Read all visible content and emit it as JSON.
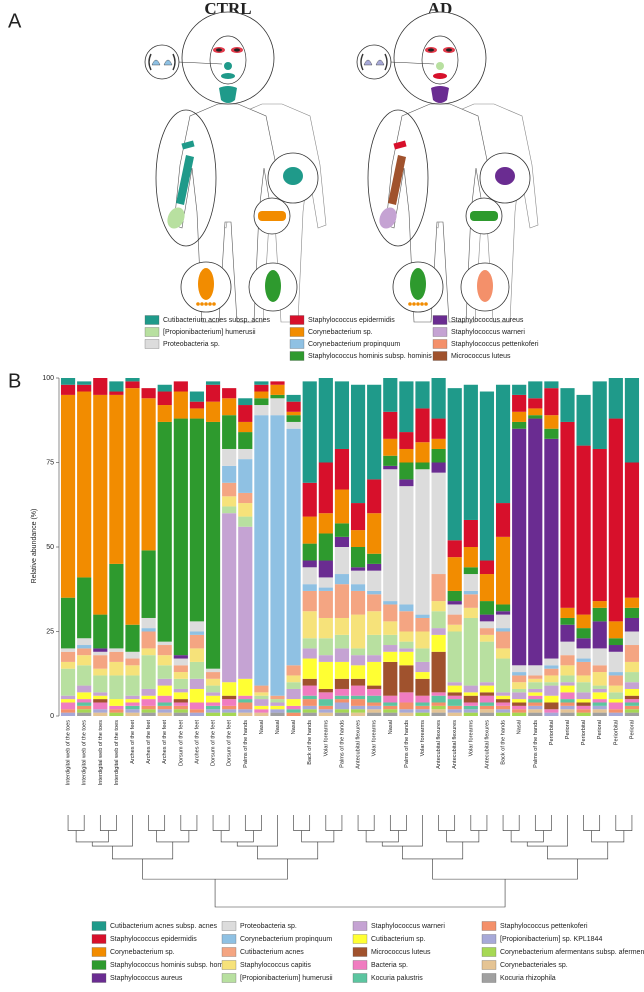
{
  "panel_a": {
    "label": "A",
    "groups": [
      "CTRL",
      "AD"
    ],
    "legend": [
      {
        "name": "Cutibacterium acnes subsp. acnes",
        "color": "#1f9a8a"
      },
      {
        "name": "[Propionibacterium] humerusii",
        "color": "#b8e0a0"
      },
      {
        "name": "Proteobacteria sp.",
        "color": "#dcdcdc"
      },
      {
        "name": "Staphylococcus epidermidis",
        "color": "#d7102b"
      },
      {
        "name": "Corynebacterium sp.",
        "color": "#f28c00"
      },
      {
        "name": "Corynebacterium propinquum",
        "color": "#8fc1e3"
      },
      {
        "name": "Staphylococcus hominis subsp. hominis",
        "color": "#2e9a2e"
      },
      {
        "name": "Staphylococcus aureus",
        "color": "#6a2c91"
      },
      {
        "name": "Staphylococcus warneri",
        "color": "#c5a3d3"
      },
      {
        "name": "Staphylococcus pettenkoferi",
        "color": "#f4906a"
      },
      {
        "name": "Micrococcus luteus",
        "color": "#a0522d"
      }
    ]
  },
  "chart_data": {
    "type": "bar",
    "stacked": true,
    "panel_label": "B",
    "ylabel": "Relative abundance (%)",
    "ylim": [
      0,
      100
    ],
    "yticks": [
      0,
      25,
      50,
      75,
      100
    ],
    "categories": [
      "Interdigital web of the toes",
      "Interdigital web of the toes",
      "Interdigital web of the toes",
      "Interdigital web of the toes",
      "Arches of the feet",
      "Arches of the feet",
      "Arches of the feet",
      "Dorsum of the feet",
      "Arches of the feet",
      "Dorsum of the feet",
      "Dorsum of the feet",
      "Palms of the hands",
      "Nasal",
      "Nasal",
      "Nasal",
      "Back of the hands",
      "Volar forearms",
      "Palms of the hands",
      "Antecubital flexures",
      "Volar forearms",
      "Nasal",
      "Palms of the hands",
      "Volar forearms",
      "Antecubital flexures",
      "Antecubital flexures",
      "Volar forearms",
      "Antecubital flexures",
      "Back of the hands",
      "Nasal",
      "Palms of the hands",
      "Periorbital",
      "Perioral",
      "Periorbital",
      "Perioral",
      "Periorbital",
      "Perioral"
    ],
    "category_colors": [
      "#e8312b",
      "#000000",
      "#e8312b",
      "#000000",
      "#e8312b",
      "#000000",
      "#000000",
      "#000000",
      "#e8312b",
      "#000000",
      "#e8312b",
      "#000000",
      "#e8312b",
      "#000000",
      "#000000",
      "#000000",
      "#000000",
      "#000000",
      "#e8312b",
      "#e8312b",
      "#000000",
      "#000000",
      "#e8312b",
      "#e8312b",
      "#000000",
      "#000000",
      "#000000",
      "#000000",
      "#e8312b",
      "#e8312b",
      "#e8312b",
      "#e8312b",
      "#000000",
      "#e8312b",
      "#000000",
      "#000000"
    ],
    "series": [
      {
        "name": "Cutibacterium acnes subsp. acnes",
        "color": "#1f9a8a",
        "values": [
          2,
          1,
          0,
          3,
          1,
          0,
          2,
          0,
          3,
          1,
          0,
          2,
          1,
          0,
          2,
          30,
          25,
          20,
          35,
          28,
          10,
          15,
          8,
          12,
          45,
          40,
          50,
          35,
          3,
          5,
          2,
          10,
          15,
          20,
          12,
          25
        ]
      },
      {
        "name": "Staphylococcus epidermidis",
        "color": "#d7102b",
        "values": [
          3,
          2,
          5,
          1,
          2,
          3,
          4,
          3,
          2,
          5,
          3,
          5,
          2,
          1,
          3,
          10,
          15,
          12,
          8,
          10,
          8,
          5,
          10,
          6,
          5,
          8,
          4,
          10,
          5,
          3,
          8,
          55,
          50,
          45,
          60,
          40
        ]
      },
      {
        "name": "Corynebacterium sp.",
        "color": "#f28c00",
        "values": [
          60,
          55,
          65,
          50,
          70,
          45,
          5,
          8,
          3,
          6,
          5,
          3,
          2,
          3,
          1,
          8,
          6,
          10,
          5,
          12,
          5,
          4,
          6,
          3,
          10,
          6,
          8,
          20,
          3,
          2,
          4,
          3,
          4,
          2,
          5,
          3
        ]
      },
      {
        "name": "Staphylococcus hominis subsp. hominis",
        "color": "#2e9a2e",
        "values": [
          15,
          18,
          10,
          25,
          8,
          20,
          65,
          70,
          60,
          73,
          10,
          5,
          2,
          1,
          2,
          5,
          8,
          4,
          6,
          3,
          3,
          5,
          2,
          4,
          3,
          2,
          4,
          2,
          2,
          1,
          3,
          2,
          3,
          4,
          2,
          3
        ]
      },
      {
        "name": "Staphylococcus aureus",
        "color": "#6a2c91",
        "values": [
          0,
          0,
          1,
          0,
          0,
          0,
          0,
          1,
          0,
          0,
          0,
          0,
          0,
          0,
          0,
          2,
          5,
          3,
          1,
          2,
          1,
          2,
          0,
          3,
          1,
          0,
          2,
          1,
          70,
          73,
          65,
          5,
          3,
          8,
          2,
          4
        ]
      },
      {
        "name": "Proteobacteria sp.",
        "color": "#dcdcdc",
        "values": [
          1,
          2,
          1,
          1,
          2,
          3,
          1,
          2,
          3,
          1,
          5,
          3,
          3,
          5,
          2,
          5,
          3,
          8,
          4,
          6,
          39,
          35,
          43,
          30,
          3,
          5,
          2,
          4,
          2,
          3,
          2,
          4,
          3,
          5,
          6,
          4
        ]
      },
      {
        "name": "Corynebacterium propinquum",
        "color": "#8fc1e3",
        "values": [
          0,
          1,
          0,
          0,
          0,
          1,
          0,
          0,
          1,
          0,
          5,
          10,
          80,
          83,
          70,
          2,
          1,
          3,
          2,
          1,
          1,
          2,
          1,
          0,
          0,
          1,
          0,
          1,
          1,
          0,
          1,
          0,
          1,
          0,
          1,
          0
        ]
      },
      {
        "name": "Cutibacterium acnes",
        "color": "#f4a582",
        "values": [
          3,
          2,
          4,
          3,
          2,
          5,
          3,
          2,
          4,
          2,
          4,
          3,
          2,
          1,
          3,
          6,
          8,
          10,
          7,
          5,
          5,
          6,
          4,
          8,
          3,
          4,
          2,
          5,
          2,
          1,
          2,
          3,
          4,
          2,
          3,
          5
        ]
      },
      {
        "name": "Staphylococcus capitis",
        "color": "#f6e27a",
        "values": [
          2,
          3,
          2,
          4,
          3,
          2,
          3,
          2,
          4,
          2,
          3,
          4,
          1,
          0,
          2,
          8,
          6,
          5,
          10,
          7,
          4,
          3,
          5,
          3,
          2,
          3,
          2,
          3,
          2,
          1,
          2,
          3,
          2,
          4,
          2,
          3
        ]
      },
      {
        "name": "[Propionibacterium] humerusii",
        "color": "#b8e0a0",
        "values": [
          8,
          6,
          5,
          7,
          6,
          10,
          4,
          3,
          5,
          2,
          2,
          3,
          1,
          1,
          2,
          3,
          5,
          4,
          2,
          6,
          3,
          2,
          4,
          5,
          15,
          20,
          12,
          10,
          1,
          2,
          1,
          2,
          3,
          1,
          2,
          3
        ]
      },
      {
        "name": "Staphylococcus warneri",
        "color": "#c5a3d3",
        "values": [
          1,
          2,
          1,
          0,
          1,
          2,
          2,
          1,
          3,
          1,
          50,
          45,
          2,
          1,
          3,
          3,
          2,
          4,
          3,
          2,
          2,
          1,
          3,
          2,
          1,
          2,
          1,
          1,
          2,
          1,
          3,
          1,
          2,
          1,
          0,
          2
        ]
      },
      {
        "name": "Cutibacterium sp.",
        "color": "#ffff33",
        "values": [
          1,
          2,
          1,
          2,
          1,
          1,
          3,
          2,
          4,
          2,
          4,
          5,
          1,
          1,
          2,
          6,
          8,
          5,
          4,
          7,
          3,
          4,
          2,
          5,
          2,
          1,
          2,
          1,
          1,
          1,
          2,
          2,
          1,
          2,
          1,
          2
        ]
      },
      {
        "name": "Micrococcus luteus",
        "color": "#a0522d",
        "values": [
          0,
          0,
          1,
          0,
          0,
          0,
          0,
          1,
          0,
          0,
          1,
          0,
          0,
          0,
          0,
          2,
          1,
          3,
          2,
          1,
          10,
          8,
          5,
          12,
          1,
          2,
          1,
          1,
          1,
          0,
          2,
          0,
          1,
          0,
          0,
          1
        ]
      },
      {
        "name": "Bacteria sp.",
        "color": "#f07cc0",
        "values": [
          2,
          1,
          2,
          1,
          1,
          2,
          2,
          1,
          2,
          1,
          2,
          1,
          1,
          0,
          1,
          3,
          2,
          2,
          3,
          2,
          2,
          3,
          2,
          1,
          1,
          1,
          2,
          1,
          1,
          1,
          1,
          2,
          1,
          1,
          2,
          1
        ]
      },
      {
        "name": "Kocuria palustris",
        "color": "#5cc5a0",
        "values": [
          0,
          1,
          0,
          0,
          1,
          0,
          1,
          0,
          0,
          1,
          0,
          1,
          0,
          0,
          1,
          1,
          2,
          1,
          1,
          2,
          1,
          0,
          1,
          2,
          2,
          1,
          1,
          0,
          0,
          1,
          0,
          1,
          0,
          1,
          0,
          1
        ]
      },
      {
        "name": "Staphylococcus pettenkoferi",
        "color": "#f4906a",
        "values": [
          1,
          1,
          0,
          1,
          0,
          1,
          1,
          1,
          1,
          0,
          1,
          2,
          0,
          0,
          1,
          2,
          1,
          1,
          2,
          1,
          1,
          2,
          1,
          1,
          1,
          0,
          1,
          1,
          1,
          1,
          0,
          1,
          1,
          0,
          1,
          1
        ]
      },
      {
        "name": "[Propionibacterium] sp. KPL1844",
        "color": "#a7a9d8",
        "values": [
          1,
          0,
          1,
          0,
          1,
          0,
          1,
          0,
          1,
          1,
          1,
          1,
          0,
          1,
          0,
          1,
          1,
          2,
          1,
          1,
          0,
          1,
          1,
          0,
          1,
          1,
          0,
          1,
          0,
          1,
          1,
          1,
          0,
          1,
          1,
          0
        ]
      },
      {
        "name": "Corynebacterium afermentans subsp. afermentans",
        "color": "#a6d854",
        "values": [
          0,
          1,
          0,
          1,
          0,
          1,
          0,
          1,
          0,
          1,
          1,
          0,
          0,
          0,
          0,
          1,
          0,
          1,
          1,
          0,
          1,
          0,
          1,
          1,
          0,
          1,
          0,
          1,
          1,
          0,
          0,
          0,
          1,
          0,
          0,
          1
        ]
      },
      {
        "name": "Corynebacteriales sp.",
        "color": "#e5c494",
        "values": [
          0,
          0,
          1,
          0,
          1,
          0,
          1,
          0,
          0,
          0,
          0,
          1,
          1,
          0,
          0,
          0,
          1,
          0,
          1,
          1,
          0,
          1,
          0,
          1,
          1,
          0,
          1,
          0,
          0,
          1,
          0,
          1,
          0,
          1,
          0,
          0
        ]
      },
      {
        "name": "Kocuria rhizophila",
        "color": "#a0a0a0",
        "values": [
          0,
          1,
          0,
          0,
          0,
          1,
          0,
          1,
          0,
          0,
          0,
          0,
          0,
          1,
          0,
          1,
          0,
          1,
          0,
          1,
          1,
          0,
          0,
          1,
          0,
          0,
          1,
          0,
          0,
          1,
          0,
          1,
          0,
          1,
          0,
          1
        ]
      }
    ]
  }
}
